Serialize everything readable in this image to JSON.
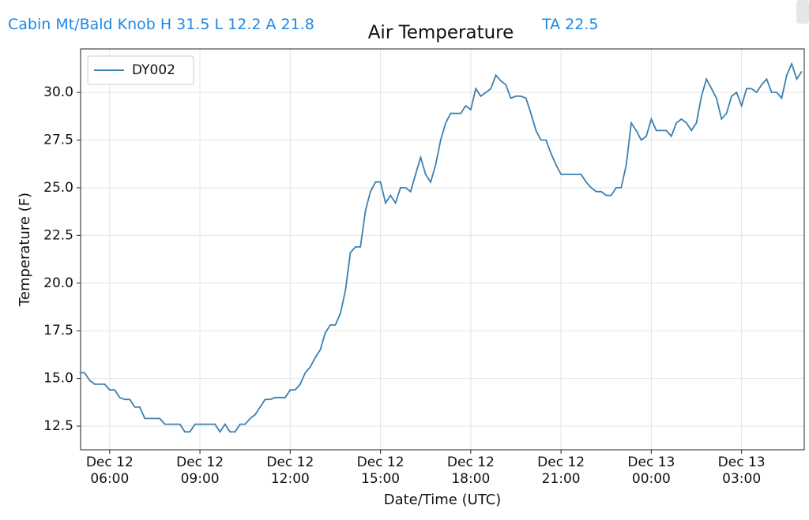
{
  "header": {
    "station": "Cabin Mt/Bald Knob H 31.5 L 12.2 A 21.8",
    "ta": "TA 22.5"
  },
  "chart_data": {
    "type": "line",
    "title": "Air Temperature",
    "x_label": "Date/Time (UTC)",
    "y_label": "Temperature (F)",
    "x": [
      "Dec 12 05:00",
      "Dec 12 05:10",
      "Dec 12 05:20",
      "Dec 12 05:30",
      "Dec 12 05:50",
      "Dec 12 06:00",
      "Dec 12 06:10",
      "Dec 12 06:20",
      "Dec 12 06:30",
      "Dec 12 06:40",
      "Dec 12 06:50",
      "Dec 12 07:00",
      "Dec 12 07:10",
      "Dec 12 07:40",
      "Dec 12 07:50",
      "Dec 12 08:20",
      "Dec 12 08:30",
      "Dec 12 08:40",
      "Dec 12 08:50",
      "Dec 12 09:30",
      "Dec 12 09:40",
      "Dec 12 09:50",
      "Dec 12 10:00",
      "Dec 12 10:10",
      "Dec 12 10:20",
      "Dec 12 10:30",
      "Dec 12 10:40",
      "Dec 12 10:50",
      "Dec 12 11:00",
      "Dec 12 11:10",
      "Dec 12 11:20",
      "Dec 12 11:30",
      "Dec 12 11:50",
      "Dec 12 12:00",
      "Dec 12 12:10",
      "Dec 12 12:20",
      "Dec 12 12:30",
      "Dec 12 12:40",
      "Dec 12 12:50",
      "Dec 12 13:00",
      "Dec 12 13:10",
      "Dec 12 13:20",
      "Dec 12 13:30",
      "Dec 12 13:40",
      "Dec 12 13:50",
      "Dec 12 14:00",
      "Dec 12 14:10",
      "Dec 12 14:20",
      "Dec 12 14:30",
      "Dec 12 14:40",
      "Dec 12 14:50",
      "Dec 12 15:00",
      "Dec 12 15:10",
      "Dec 12 15:20",
      "Dec 12 15:30",
      "Dec 12 15:40",
      "Dec 12 15:50",
      "Dec 12 16:00",
      "Dec 12 16:10",
      "Dec 12 16:20",
      "Dec 12 16:30",
      "Dec 12 16:40",
      "Dec 12 16:50",
      "Dec 12 17:00",
      "Dec 12 17:10",
      "Dec 12 17:20",
      "Dec 12 17:40",
      "Dec 12 17:50",
      "Dec 12 18:00",
      "Dec 12 18:10",
      "Dec 12 18:20",
      "Dec 12 18:40",
      "Dec 12 18:50",
      "Dec 12 19:00",
      "Dec 12 19:10",
      "Dec 12 19:20",
      "Dec 12 19:30",
      "Dec 12 19:40",
      "Dec 12 19:50",
      "Dec 12 20:00",
      "Dec 12 20:10",
      "Dec 12 20:20",
      "Dec 12 20:30",
      "Dec 12 20:40",
      "Dec 12 20:50",
      "Dec 12 21:00",
      "Dec 12 21:40",
      "Dec 12 21:50",
      "Dec 12 22:00",
      "Dec 12 22:10",
      "Dec 12 22:20",
      "Dec 12 22:30",
      "Dec 12 22:40",
      "Dec 12 22:50",
      "Dec 12 23:00",
      "Dec 12 23:10",
      "Dec 12 23:20",
      "Dec 12 23:30",
      "Dec 12 23:40",
      "Dec 12 23:50",
      "Dec 13 00:00",
      "Dec 13 00:10",
      "Dec 13 00:30",
      "Dec 13 00:40",
      "Dec 13 00:50",
      "Dec 13 01:00",
      "Dec 13 01:10",
      "Dec 13 01:20",
      "Dec 13 01:30",
      "Dec 13 01:40",
      "Dec 13 01:50",
      "Dec 13 02:00",
      "Dec 13 02:10",
      "Dec 13 02:20",
      "Dec 13 02:30",
      "Dec 13 02:40",
      "Dec 13 02:50",
      "Dec 13 03:00",
      "Dec 13 03:10",
      "Dec 13 03:20",
      "Dec 13 03:30",
      "Dec 13 03:40",
      "Dec 13 03:50",
      "Dec 13 04:00",
      "Dec 13 04:10",
      "Dec 13 04:20",
      "Dec 13 04:30",
      "Dec 13 04:40",
      "Dec 13 04:50",
      "Dec 13 05:00"
    ],
    "series": [
      {
        "name": "DY002",
        "color": "#3b80ae",
        "values": [
          15.3,
          15.3,
          14.9,
          14.7,
          14.7,
          14.4,
          14.4,
          14.0,
          13.9,
          13.9,
          13.5,
          13.5,
          12.9,
          12.9,
          12.6,
          12.6,
          12.2,
          12.2,
          12.6,
          12.6,
          12.2,
          12.6,
          12.2,
          12.2,
          12.6,
          12.6,
          12.9,
          13.1,
          13.5,
          13.9,
          13.9,
          14.0,
          14.0,
          14.4,
          14.4,
          14.7,
          15.3,
          15.6,
          16.1,
          16.5,
          17.4,
          17.8,
          17.8,
          18.4,
          19.6,
          21.6,
          21.9,
          21.9,
          23.8,
          24.8,
          25.3,
          25.3,
          24.2,
          24.6,
          24.2,
          25.0,
          25.0,
          24.8,
          25.7,
          26.6,
          25.7,
          25.3,
          26.2,
          27.5,
          28.4,
          28.9,
          28.9,
          29.3,
          29.1,
          30.2,
          29.8,
          30.2,
          30.9,
          30.6,
          30.4,
          29.7,
          29.8,
          29.8,
          29.7,
          28.9,
          28.0,
          27.5,
          27.5,
          26.8,
          26.2,
          25.7,
          25.7,
          25.3,
          25.0,
          24.8,
          24.8,
          24.6,
          24.6,
          25.0,
          25.0,
          26.2,
          28.4,
          28.0,
          27.5,
          27.7,
          28.6,
          28.0,
          28.0,
          27.7,
          28.4,
          28.6,
          28.4,
          28.0,
          28.4,
          29.8,
          30.7,
          30.2,
          29.7,
          28.6,
          28.9,
          29.8,
          30.0,
          29.3,
          30.2,
          30.2,
          30.0,
          30.4,
          30.7,
          30.0,
          30.0,
          29.7,
          30.9,
          31.5,
          30.7,
          31.1
        ]
      }
    ],
    "xlim": [
      "Dec 12 05:02",
      "Dec 13 05:05"
    ],
    "xticks": [
      {
        "value": "Dec 12 06:00",
        "label": "Dec 12\n06:00"
      },
      {
        "value": "Dec 12 09:00",
        "label": "Dec 12\n09:00"
      },
      {
        "value": "Dec 12 12:00",
        "label": "Dec 12\n12:00"
      },
      {
        "value": "Dec 12 15:00",
        "label": "Dec 12\n15:00"
      },
      {
        "value": "Dec 12 18:00",
        "label": "Dec 12\n18:00"
      },
      {
        "value": "Dec 12 21:00",
        "label": "Dec 12\n21:00"
      },
      {
        "value": "Dec 13 00:00",
        "label": "Dec 13\n00:00"
      },
      {
        "value": "Dec 13 03:00",
        "label": "Dec 13\n03:00"
      }
    ],
    "ylim": [
      11.26,
      32.28
    ],
    "yticks": [
      12.5,
      {
        "value": 15,
        "label": "15.0"
      },
      17.5,
      {
        "value": 20,
        "label": "20.0"
      },
      22.5,
      {
        "value": 25,
        "label": "25.0"
      },
      27.5,
      {
        "value": 30,
        "label": "30.0"
      }
    ],
    "grid": true,
    "legend": "upper left"
  }
}
